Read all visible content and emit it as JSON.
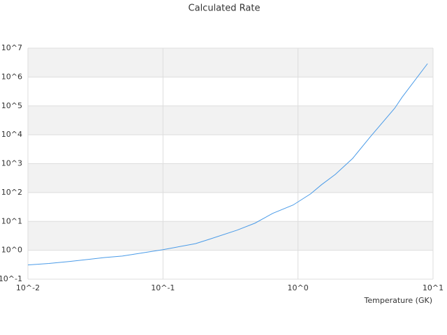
{
  "chart_data": {
    "type": "line",
    "title": "Calculated Rate",
    "x_label": "Temperature (GK)",
    "x": [
      0.01,
      0.0143,
      0.0204,
      0.037,
      0.05,
      0.1,
      0.174,
      0.22,
      0.355,
      0.48,
      0.65,
      0.92,
      1.24,
      1.49,
      1.89,
      2.54,
      3.43,
      5.2,
      5.9,
      9.1
    ],
    "series": [
      {
        "name": "Rate",
        "color": "#4a9be8",
        "values": [
          0.31,
          0.35,
          0.41,
          0.56,
          0.63,
          1.05,
          1.7,
          2.4,
          5.0,
          8.7,
          19,
          37,
          90,
          185,
          425,
          1520,
          8500,
          83000,
          200000,
          2900000
        ]
      }
    ],
    "xlog": true,
    "ylog": true,
    "grid": true,
    "xlim": [
      0.01,
      10
    ],
    "xticks": [
      {
        "value": 0.01,
        "label": "10^-2"
      },
      {
        "value": 0.1,
        "label": "10^-1"
      },
      {
        "value": 1,
        "label": "10^0"
      },
      {
        "value": 10,
        "label": "10^1"
      }
    ],
    "ylim": [
      0.1,
      10000000
    ],
    "yticks": [
      {
        "value": 0.1,
        "label": "10^-1"
      },
      {
        "value": 1,
        "label": "10^0"
      },
      {
        "value": 10,
        "label": "10^1"
      },
      {
        "value": 100,
        "label": "10^2"
      },
      {
        "value": 1000,
        "label": "10^3"
      },
      {
        "value": 10000,
        "label": "10^4"
      },
      {
        "value": 100000,
        "label": "10^5"
      },
      {
        "value": 1000000,
        "label": "10^6"
      },
      {
        "value": 10000000,
        "label": "10^7"
      }
    ]
  }
}
